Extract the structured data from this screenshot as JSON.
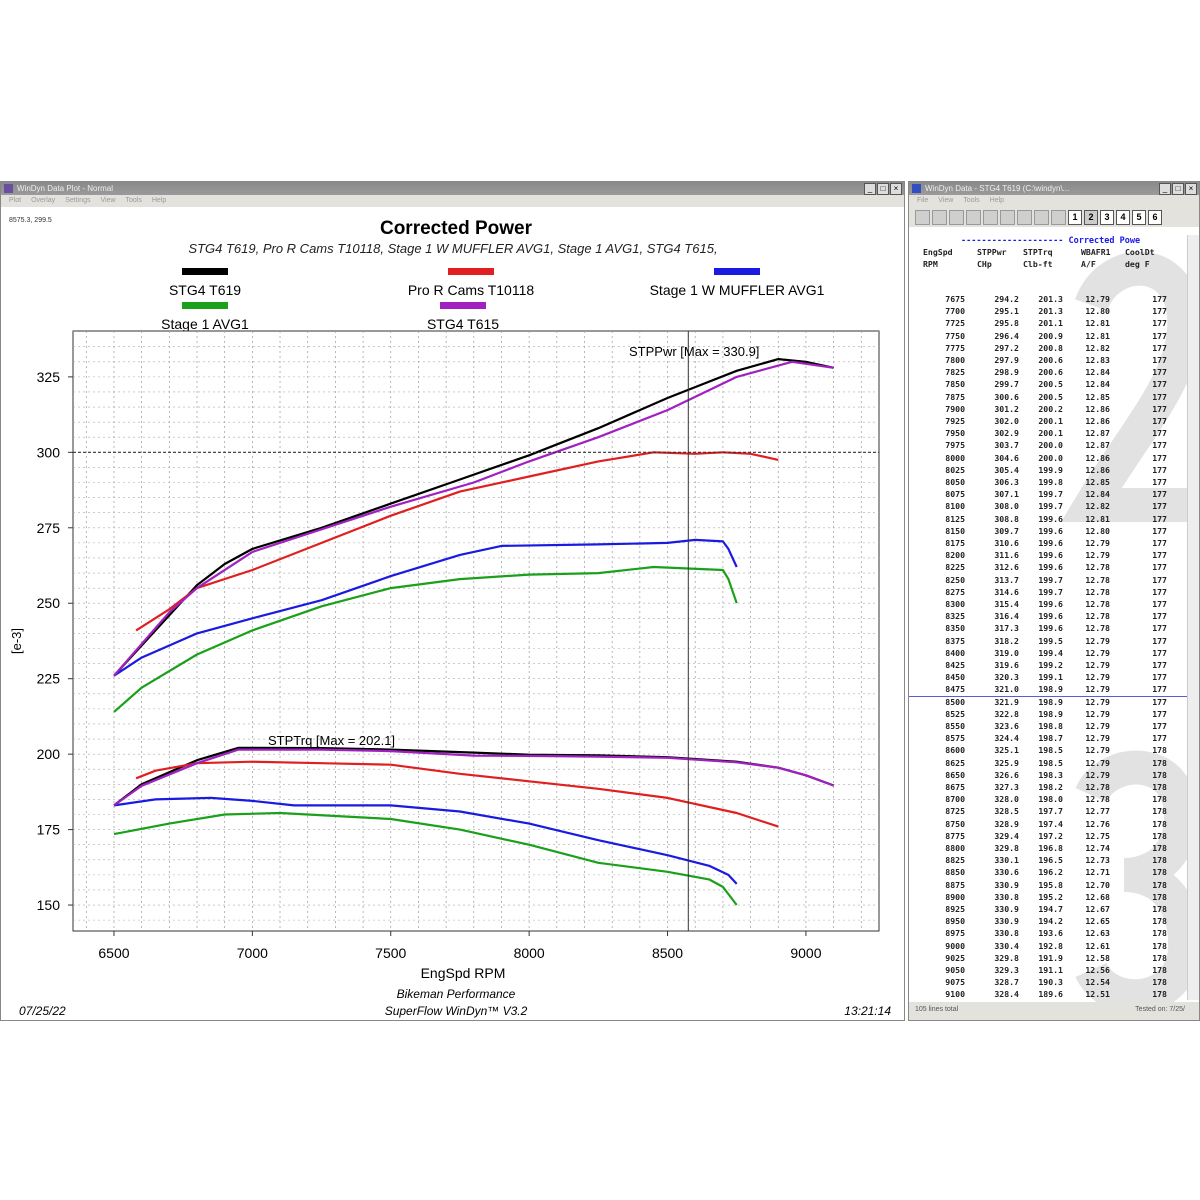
{
  "plot_window": {
    "title": "WinDyn Data Plot - Normal",
    "menu": [
      "Plot",
      "Overlay",
      "Settings",
      "View",
      "Tools",
      "Help"
    ],
    "cursor_readout": "8575.3, 299.5",
    "footer": {
      "date": "07/25/22",
      "company": "Bikeman Performance",
      "software": "SuperFlow WinDyn™ V3.2",
      "time": "13:21:14"
    }
  },
  "chart_data": {
    "type": "line",
    "title": "Corrected Power",
    "subtitle": "STG4 T619, Pro R Cams T10118, Stage 1 W MUFFLER AVG1, Stage 1 AVG1, STG4 T615,",
    "xlabel": "EngSpd RPM",
    "ylabel": "[e-3]",
    "xlim": [
      6352,
      9264
    ],
    "ylim": [
      141.4,
      340.2
    ],
    "xticks": [
      6500,
      7000,
      7500,
      8000,
      8500,
      9000
    ],
    "yticks": [
      150,
      175,
      200,
      225,
      250,
      275,
      300,
      325
    ],
    "grid": true,
    "legend_placement": "top",
    "cursor": {
      "x": 8575,
      "y": 300
    },
    "annotations": [
      {
        "text": "STPPwr [Max = 330.9]"
      },
      {
        "text": "STPTrq [Max = 202.1]"
      }
    ],
    "series": [
      {
        "name": "STG4 T619",
        "color": "#000000",
        "power": [
          [
            6500,
            226
          ],
          [
            6600,
            236
          ],
          [
            6700,
            246
          ],
          [
            6800,
            256
          ],
          [
            6900,
            263
          ],
          [
            7000,
            268
          ],
          [
            7250,
            275
          ],
          [
            7500,
            283
          ],
          [
            7750,
            291
          ],
          [
            8000,
            299
          ],
          [
            8250,
            308
          ],
          [
            8500,
            318
          ],
          [
            8750,
            327
          ],
          [
            8900,
            330.9
          ],
          [
            9000,
            330
          ],
          [
            9100,
            328
          ]
        ],
        "torque": [
          [
            6500,
            183
          ],
          [
            6600,
            190
          ],
          [
            6800,
            198
          ],
          [
            6950,
            202.1
          ],
          [
            7250,
            202
          ],
          [
            7500,
            201.5
          ],
          [
            7800,
            200.5
          ],
          [
            8000,
            199.8
          ],
          [
            8250,
            199.6
          ],
          [
            8500,
            199
          ],
          [
            8750,
            197.5
          ],
          [
            8900,
            195.5
          ],
          [
            9000,
            193
          ],
          [
            9100,
            189.6
          ]
        ]
      },
      {
        "name": "Pro R Cams T10118",
        "color": "#e02020",
        "power": [
          [
            6580,
            241
          ],
          [
            6700,
            248
          ],
          [
            6800,
            255
          ],
          [
            7000,
            261
          ],
          [
            7250,
            270
          ],
          [
            7500,
            279
          ],
          [
            7750,
            287
          ],
          [
            8000,
            292
          ],
          [
            8250,
            297
          ],
          [
            8450,
            300
          ],
          [
            8600,
            299.5
          ],
          [
            8700,
            300
          ],
          [
            8800,
            299.5
          ],
          [
            8900,
            297.5
          ]
        ],
        "torque": [
          [
            6580,
            192
          ],
          [
            6650,
            194.5
          ],
          [
            6800,
            197
          ],
          [
            7000,
            197.5
          ],
          [
            7250,
            197
          ],
          [
            7500,
            196.5
          ],
          [
            7750,
            193.5
          ],
          [
            8000,
            191
          ],
          [
            8250,
            188.5
          ],
          [
            8500,
            185.5
          ],
          [
            8750,
            180.5
          ],
          [
            8900,
            176
          ]
        ]
      },
      {
        "name": "Stage 1 W MUFFLER AVG1",
        "color": "#1a1ae0",
        "power": [
          [
            6500,
            226
          ],
          [
            6600,
            232
          ],
          [
            6800,
            240
          ],
          [
            7000,
            245
          ],
          [
            7250,
            251
          ],
          [
            7500,
            259
          ],
          [
            7750,
            266
          ],
          [
            7900,
            269
          ],
          [
            8250,
            269.5
          ],
          [
            8500,
            270
          ],
          [
            8600,
            271
          ],
          [
            8700,
            270.5
          ],
          [
            8720,
            268
          ],
          [
            8750,
            262
          ]
        ],
        "torque": [
          [
            6500,
            183
          ],
          [
            6650,
            185
          ],
          [
            6850,
            185.5
          ],
          [
            7000,
            184.5
          ],
          [
            7150,
            183
          ],
          [
            7500,
            183
          ],
          [
            7750,
            181
          ],
          [
            8000,
            177
          ],
          [
            8250,
            171.5
          ],
          [
            8500,
            166.5
          ],
          [
            8650,
            163
          ],
          [
            8720,
            160
          ],
          [
            8750,
            157
          ]
        ]
      },
      {
        "name": "Stage 1 AVG1",
        "color": "#1aa01a",
        "power": [
          [
            6500,
            214
          ],
          [
            6600,
            222
          ],
          [
            6800,
            233
          ],
          [
            7000,
            241
          ],
          [
            7250,
            249
          ],
          [
            7500,
            255
          ],
          [
            7750,
            258
          ],
          [
            8000,
            259.5
          ],
          [
            8250,
            260
          ],
          [
            8450,
            262
          ],
          [
            8700,
            261
          ],
          [
            8720,
            258
          ],
          [
            8750,
            250
          ]
        ],
        "torque": [
          [
            6500,
            173.5
          ],
          [
            6700,
            177
          ],
          [
            6900,
            180
          ],
          [
            7100,
            180.5
          ],
          [
            7500,
            178.5
          ],
          [
            7750,
            175
          ],
          [
            8000,
            170
          ],
          [
            8250,
            164
          ],
          [
            8500,
            161
          ],
          [
            8650,
            158.5
          ],
          [
            8700,
            156
          ],
          [
            8750,
            150
          ]
        ]
      },
      {
        "name": "STG4 T615",
        "color": "#a020c0",
        "power": [
          [
            6500,
            226
          ],
          [
            6700,
            247
          ],
          [
            6800,
            255
          ],
          [
            7000,
            267
          ],
          [
            7500,
            282
          ],
          [
            7800,
            290
          ],
          [
            8000,
            297
          ],
          [
            8250,
            305
          ],
          [
            8500,
            314
          ],
          [
            8750,
            325
          ],
          [
            8950,
            330
          ],
          [
            9100,
            328
          ]
        ],
        "torque": [
          [
            6500,
            183
          ],
          [
            6600,
            189.5
          ],
          [
            6800,
            197
          ],
          [
            6950,
            201.5
          ],
          [
            7250,
            201.5
          ],
          [
            7500,
            201
          ],
          [
            7800,
            199.5
          ],
          [
            8000,
            199.4
          ],
          [
            8250,
            199.2
          ],
          [
            8500,
            198.8
          ],
          [
            8750,
            197.3
          ],
          [
            8900,
            195.5
          ],
          [
            9000,
            193
          ],
          [
            9100,
            189.6
          ]
        ]
      }
    ]
  },
  "data_window": {
    "title": "WinDyn Data - STG4 T619  (C:\\windyn\\...",
    "menu": [
      "File",
      "View",
      "Tools",
      "Help"
    ],
    "toolbar_icons": [
      "open-icon",
      "folder-icon",
      "save-icon",
      "play-icon",
      "print-icon",
      "graph-icon",
      "edit-icon",
      "list-icon",
      "options-icon"
    ],
    "tabs": [
      "1",
      "2",
      "3",
      "4",
      "5",
      "6"
    ],
    "active_tab": 1,
    "section_label": "-------------------- Corrected Powe",
    "columns": [
      {
        "name": "EngSpd",
        "unit": "RPM"
      },
      {
        "name": "STPPwr",
        "unit": "CHp"
      },
      {
        "name": "STPTrq",
        "unit": "Clb-ft"
      },
      {
        "name": "WBAFR1",
        "unit": "A/F"
      },
      {
        "name": "CoolDt",
        "unit": "deg F"
      }
    ],
    "page_markers": [
      "2",
      "3"
    ],
    "rows": [
      [
        "7675",
        "294.2",
        "201.3",
        "12.79",
        "177"
      ],
      [
        "7700",
        "295.1",
        "201.3",
        "12.80",
        "177"
      ],
      [
        "7725",
        "295.8",
        "201.1",
        "12.81",
        "177"
      ],
      [
        "7750",
        "296.4",
        "200.9",
        "12.81",
        "177"
      ],
      [
        "7775",
        "297.2",
        "200.8",
        "12.82",
        "177"
      ],
      [
        "7800",
        "297.9",
        "200.6",
        "12.83",
        "177"
      ],
      [
        "7825",
        "298.9",
        "200.6",
        "12.84",
        "177"
      ],
      [
        "7850",
        "299.7",
        "200.5",
        "12.84",
        "177"
      ],
      [
        "7875",
        "300.6",
        "200.5",
        "12.85",
        "177"
      ],
      [
        "7900",
        "301.2",
        "200.2",
        "12.86",
        "177"
      ],
      [
        "7925",
        "302.0",
        "200.1",
        "12.86",
        "177"
      ],
      [
        "7950",
        "302.9",
        "200.1",
        "12.87",
        "177"
      ],
      [
        "7975",
        "303.7",
        "200.0",
        "12.87",
        "177"
      ],
      [
        "8000",
        "304.6",
        "200.0",
        "12.86",
        "177"
      ],
      [
        "8025",
        "305.4",
        "199.9",
        "12.86",
        "177"
      ],
      [
        "8050",
        "306.3",
        "199.8",
        "12.85",
        "177"
      ],
      [
        "8075",
        "307.1",
        "199.7",
        "12.84",
        "177"
      ],
      [
        "8100",
        "308.0",
        "199.7",
        "12.82",
        "177"
      ],
      [
        "8125",
        "308.8",
        "199.6",
        "12.81",
        "177"
      ],
      [
        "8150",
        "309.7",
        "199.6",
        "12.80",
        "177"
      ],
      [
        "8175",
        "310.6",
        "199.6",
        "12.79",
        "177"
      ],
      [
        "8200",
        "311.6",
        "199.6",
        "12.79",
        "177"
      ],
      [
        "8225",
        "312.6",
        "199.6",
        "12.78",
        "177"
      ],
      [
        "8250",
        "313.7",
        "199.7",
        "12.78",
        "177"
      ],
      [
        "8275",
        "314.6",
        "199.7",
        "12.78",
        "177"
      ],
      [
        "8300",
        "315.4",
        "199.6",
        "12.78",
        "177"
      ],
      [
        "8325",
        "316.4",
        "199.6",
        "12.78",
        "177"
      ],
      [
        "8350",
        "317.3",
        "199.6",
        "12.78",
        "177"
      ],
      [
        "8375",
        "318.2",
        "199.5",
        "12.79",
        "177"
      ],
      [
        "8400",
        "319.0",
        "199.4",
        "12.79",
        "177"
      ],
      [
        "8425",
        "319.6",
        "199.2",
        "12.79",
        "177"
      ],
      [
        "8450",
        "320.3",
        "199.1",
        "12.79",
        "177"
      ],
      [
        "8475",
        "321.0",
        "198.9",
        "12.79",
        "177"
      ],
      [
        "8500",
        "321.9",
        "198.9",
        "12.79",
        "177"
      ],
      [
        "8525",
        "322.8",
        "198.9",
        "12.79",
        "177"
      ],
      [
        "8550",
        "323.6",
        "198.8",
        "12.79",
        "177"
      ],
      [
        "8575",
        "324.4",
        "198.7",
        "12.79",
        "177"
      ],
      [
        "8600",
        "325.1",
        "198.5",
        "12.79",
        "178"
      ],
      [
        "8625",
        "325.9",
        "198.5",
        "12.79",
        "178"
      ],
      [
        "8650",
        "326.6",
        "198.3",
        "12.79",
        "178"
      ],
      [
        "8675",
        "327.3",
        "198.2",
        "12.78",
        "178"
      ],
      [
        "8700",
        "328.0",
        "198.0",
        "12.78",
        "178"
      ],
      [
        "8725",
        "328.5",
        "197.7",
        "12.77",
        "178"
      ],
      [
        "8750",
        "328.9",
        "197.4",
        "12.76",
        "178"
      ],
      [
        "8775",
        "329.4",
        "197.2",
        "12.75",
        "178"
      ],
      [
        "8800",
        "329.8",
        "196.8",
        "12.74",
        "178"
      ],
      [
        "8825",
        "330.1",
        "196.5",
        "12.73",
        "178"
      ],
      [
        "8850",
        "330.6",
        "196.2",
        "12.71",
        "178"
      ],
      [
        "8875",
        "330.9",
        "195.8",
        "12.70",
        "178"
      ],
      [
        "8900",
        "330.8",
        "195.2",
        "12.68",
        "178"
      ],
      [
        "8925",
        "330.9",
        "194.7",
        "12.67",
        "178"
      ],
      [
        "8950",
        "330.9",
        "194.2",
        "12.65",
        "178"
      ],
      [
        "8975",
        "330.8",
        "193.6",
        "12.63",
        "178"
      ],
      [
        "9000",
        "330.4",
        "192.8",
        "12.61",
        "178"
      ],
      [
        "9025",
        "329.8",
        "191.9",
        "12.58",
        "178"
      ],
      [
        "9050",
        "329.3",
        "191.1",
        "12.56",
        "178"
      ],
      [
        "9075",
        "328.7",
        "190.3",
        "12.54",
        "178"
      ],
      [
        "9100",
        "328.4",
        "189.6",
        "12.51",
        "178"
      ]
    ],
    "status_left": "105 lines total",
    "status_right": "Tested on:  7/25/"
  }
}
